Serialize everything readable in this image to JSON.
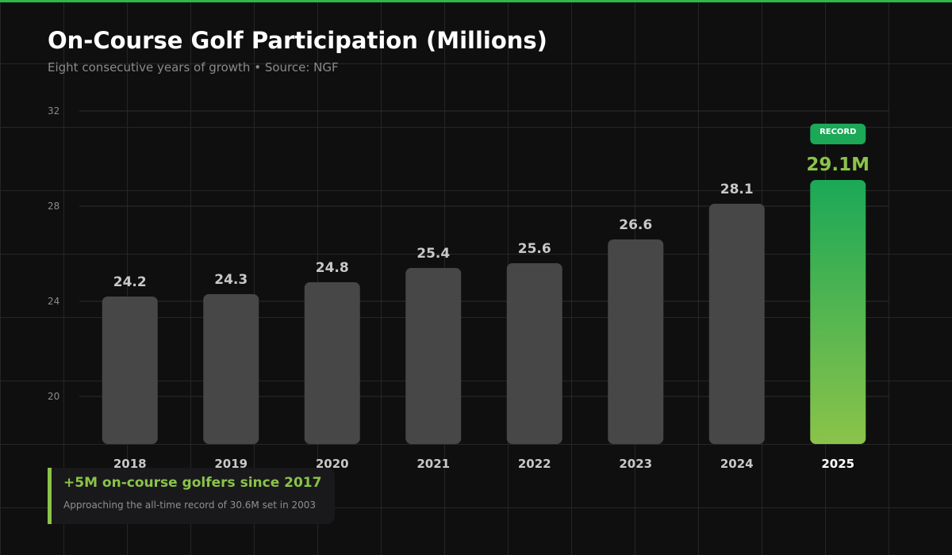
{
  "title": "On-Course Golf Participation (Millions)",
  "subtitle": "Eight consecutive years of growth • Source: NGF",
  "colors": {
    "accent": "#2db84a",
    "highlight": "#8bc34a",
    "bar": "#474747",
    "record_top": "#1ba857",
    "record_bottom": "#8bc34a"
  },
  "chart_data": {
    "type": "bar",
    "title": "On-Course Golf Participation (Millions)",
    "categories": [
      "2018",
      "2019",
      "2020",
      "2021",
      "2022",
      "2023",
      "2024",
      "2025"
    ],
    "values": [
      24.2,
      24.3,
      24.8,
      25.4,
      25.6,
      26.6,
      28.1,
      29.1
    ],
    "data_labels": [
      "24.2",
      "24.3",
      "24.8",
      "25.4",
      "25.6",
      "26.6",
      "28.1",
      "29.1M"
    ],
    "highlight_index": 7,
    "highlight_badge": "RECORD",
    "ylim": [
      18,
      32
    ],
    "yticks": [
      20,
      24,
      28,
      32
    ],
    "grid": true
  },
  "callout": {
    "title": "+5M on-course golfers since 2017",
    "text": "Approaching the all-time record of 30.6M set in 2003"
  }
}
